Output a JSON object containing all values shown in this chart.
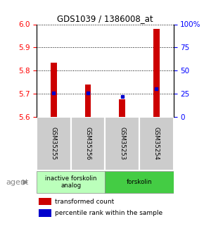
{
  "title": "GDS1039 / 1386008_at",
  "samples": [
    "GSM35255",
    "GSM35256",
    "GSM35253",
    "GSM35254"
  ],
  "bar_values": [
    5.835,
    5.74,
    5.675,
    5.98
  ],
  "bar_base": 5.6,
  "percentile_values": [
    5.702,
    5.702,
    5.688,
    5.722
  ],
  "ylim_left": [
    5.6,
    6.0
  ],
  "yticks_left": [
    5.6,
    5.7,
    5.8,
    5.9,
    6.0
  ],
  "ylim_right": [
    0,
    100
  ],
  "yticks_right": [
    0,
    25,
    50,
    75,
    100
  ],
  "yticklabels_right": [
    "0",
    "25",
    "50",
    "75",
    "100%"
  ],
  "bar_color": "#cc0000",
  "percentile_color": "#0000cc",
  "groups": [
    {
      "label": "inactive forskolin\nanalog",
      "samples": [
        0,
        1
      ],
      "color": "#bbffbb"
    },
    {
      "label": "forskolin",
      "samples": [
        2,
        3
      ],
      "color": "#44cc44"
    }
  ],
  "agent_label": "agent",
  "tick_label_color_left": "red",
  "tick_label_color_right": "blue",
  "bar_width": 0.18,
  "sample_box_color": "#cccccc",
  "legend_red_label": "transformed count",
  "legend_blue_label": "percentile rank within the sample"
}
